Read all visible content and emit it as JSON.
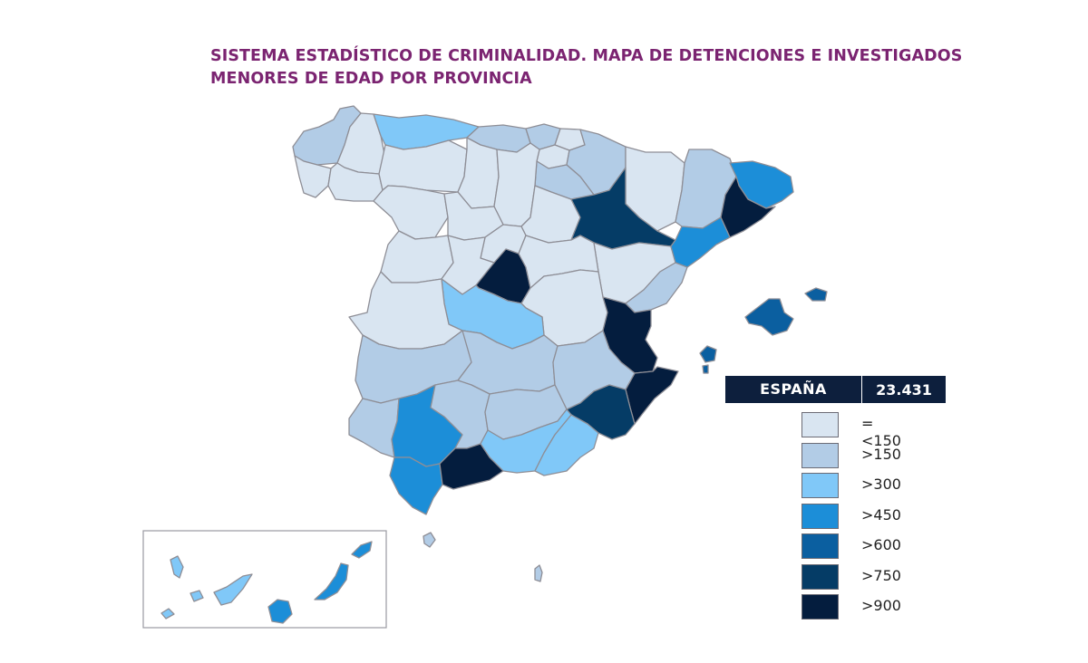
{
  "title_line1": "SISTEMA ESTADÍSTICO DE CRIMINALIDAD. MAPA DE DETENCIONES E INVESTIGADOS",
  "title_line2": "MENORES DE EDAD POR PROVINCIA",
  "total": {
    "label": "ESPAÑA",
    "value": "23.431"
  },
  "legend": [
    {
      "label": "=<150",
      "color": "#d9e5f1"
    },
    {
      "label": ">150",
      "color": "#b2cce6"
    },
    {
      "label": ">300",
      "color": "#80c8f8"
    },
    {
      "label": ">450",
      "color": "#1c8ed8"
    },
    {
      "label": ">600",
      "color": "#0b5fa0"
    },
    {
      "label": ">750",
      "color": "#053c66"
    },
    {
      "label": ">900",
      "color": "#041d3e"
    }
  ],
  "colors": {
    "title": "#7b2471",
    "border": "#8e8e96",
    "total_bg": "#0d1f3d"
  }
}
